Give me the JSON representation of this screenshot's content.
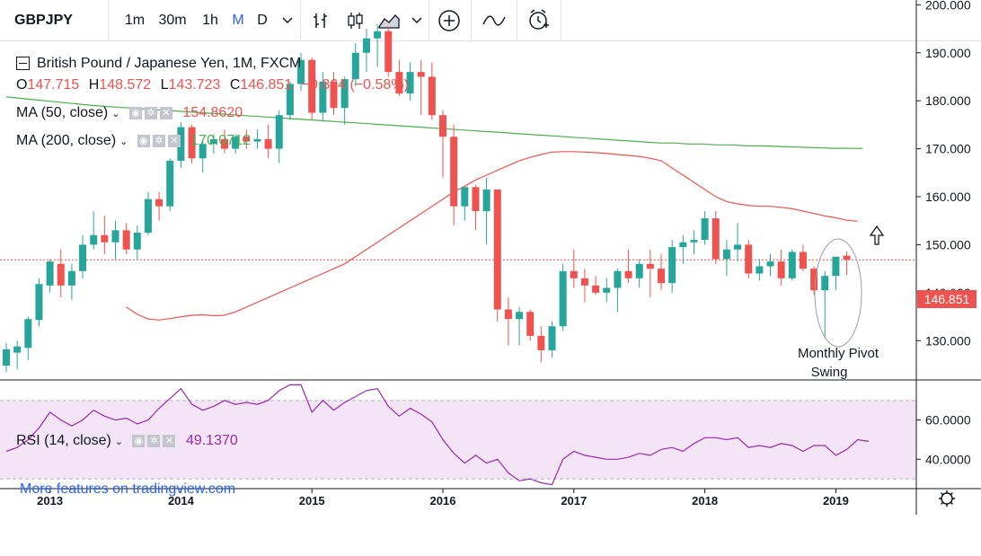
{
  "toolbar": {
    "symbol": "GBPJPY",
    "intervals": [
      "1m",
      "30m",
      "1h",
      "M",
      "D"
    ],
    "active_interval": "M",
    "icons": [
      "bar-style-icon",
      "candle-style-icon",
      "indicators-icon",
      "compare-add-icon",
      "line-tool-icon",
      "alert-icon"
    ]
  },
  "legend": {
    "title": "British Pound / Japanese Yen, 1M, FXCM",
    "ohlc": {
      "o_label": "O",
      "o": "147.715",
      "h_label": "H",
      "h": "148.572",
      "l_label": "L",
      "l": "143.723",
      "c_label": "C",
      "c": "146.851",
      "change": "−0.864 (−0.58%)"
    },
    "ma50": {
      "label": "MA (50, close)",
      "value": "154.8620"
    },
    "ma200": {
      "label": "MA (200, close)",
      "value": "170.0712"
    },
    "rsi": {
      "label": "RSI (14, close)",
      "value": "49.1370"
    },
    "watermark": "More features on tradingview.com"
  },
  "annotation": {
    "line1": "Monthly Pivot",
    "line2": "Swing"
  },
  "price_badge": "146.851",
  "colors": {
    "up": "#26a69a",
    "down": "#ef5350",
    "ma50": "#ef5350",
    "ma200": "#4caf50",
    "rsi": "#9c27b0",
    "rsi_band": "#f3e5f5",
    "accent": "#2962ff"
  },
  "chart_data": {
    "type": "candlestick",
    "y_ticks": [
      "200.000",
      "190.000",
      "180.000",
      "170.000",
      "160.000",
      "150.000",
      "140.000",
      "130.000"
    ],
    "y_tick_values": [
      200,
      190,
      180,
      170,
      160,
      150,
      140,
      130
    ],
    "ylim": [
      122,
      201
    ],
    "x_ticks": [
      "2013",
      "2014",
      "2015",
      "2016",
      "2017",
      "2018",
      "2019"
    ],
    "x_tick_index": [
      4,
      16,
      28,
      40,
      52,
      64,
      76
    ],
    "rsi_ticks": [
      "60.0000",
      "40.0000"
    ],
    "rsi_tick_values": [
      60,
      40
    ],
    "rsi_ylim": [
      25,
      80
    ],
    "rsi_bands": [
      70,
      30
    ],
    "last_price": 146.851,
    "candles": [
      {
        "o": 124.8,
        "h": 129.5,
        "l": 123.5,
        "c": 128.2
      },
      {
        "o": 127.5,
        "h": 130.0,
        "l": 124.0,
        "c": 128.8
      },
      {
        "o": 128.5,
        "h": 135.0,
        "l": 126.0,
        "c": 134.5
      },
      {
        "o": 134.3,
        "h": 143.0,
        "l": 133.0,
        "c": 141.8
      },
      {
        "o": 141.5,
        "h": 147.0,
        "l": 140.0,
        "c": 146.5
      },
      {
        "o": 146.0,
        "h": 149.0,
        "l": 139.0,
        "c": 141.5
      },
      {
        "o": 141.5,
        "h": 146.0,
        "l": 138.5,
        "c": 144.5
      },
      {
        "o": 144.5,
        "h": 152.0,
        "l": 143.0,
        "c": 150.0
      },
      {
        "o": 150.0,
        "h": 157.0,
        "l": 149.0,
        "c": 152.0
      },
      {
        "o": 152.0,
        "h": 156.0,
        "l": 148.0,
        "c": 150.5
      },
      {
        "o": 150.5,
        "h": 155.0,
        "l": 147.0,
        "c": 153.0
      },
      {
        "o": 153.0,
        "h": 154.5,
        "l": 148.0,
        "c": 149.0
      },
      {
        "o": 149.0,
        "h": 154.0,
        "l": 147.0,
        "c": 152.5
      },
      {
        "o": 152.5,
        "h": 161.0,
        "l": 152.0,
        "c": 159.5
      },
      {
        "o": 159.5,
        "h": 161.0,
        "l": 155.0,
        "c": 158.0
      },
      {
        "o": 158.0,
        "h": 168.0,
        "l": 157.0,
        "c": 167.5
      },
      {
        "o": 167.5,
        "h": 175.5,
        "l": 166.0,
        "c": 174.5
      },
      {
        "o": 174.5,
        "h": 175.0,
        "l": 167.0,
        "c": 168.0
      },
      {
        "o": 168.0,
        "h": 172.0,
        "l": 165.0,
        "c": 171.0
      },
      {
        "o": 171.0,
        "h": 173.0,
        "l": 169.0,
        "c": 172.0
      },
      {
        "o": 172.0,
        "h": 174.0,
        "l": 169.0,
        "c": 170.0
      },
      {
        "o": 170.0,
        "h": 173.0,
        "l": 169.0,
        "c": 172.5
      },
      {
        "o": 172.5,
        "h": 174.0,
        "l": 170.0,
        "c": 171.5
      },
      {
        "o": 171.5,
        "h": 174.0,
        "l": 170.0,
        "c": 172.0
      },
      {
        "o": 172.0,
        "h": 175.0,
        "l": 168.0,
        "c": 170.0
      },
      {
        "o": 170.0,
        "h": 178.0,
        "l": 167.0,
        "c": 177.0
      },
      {
        "o": 177.0,
        "h": 184.0,
        "l": 176.0,
        "c": 183.5
      },
      {
        "o": 183.5,
        "h": 190.0,
        "l": 182.0,
        "c": 188.5
      },
      {
        "o": 188.5,
        "h": 189.0,
        "l": 176.0,
        "c": 177.5
      },
      {
        "o": 177.5,
        "h": 186.0,
        "l": 176.0,
        "c": 184.0
      },
      {
        "o": 184.0,
        "h": 186.0,
        "l": 177.0,
        "c": 178.5
      },
      {
        "o": 178.5,
        "h": 185.0,
        "l": 175.0,
        "c": 184.5
      },
      {
        "o": 184.5,
        "h": 192.0,
        "l": 183.0,
        "c": 190.0
      },
      {
        "o": 190.0,
        "h": 195.0,
        "l": 186.0,
        "c": 193.0
      },
      {
        "o": 193.0,
        "h": 196.0,
        "l": 187.0,
        "c": 194.5
      },
      {
        "o": 194.5,
        "h": 195.5,
        "l": 185.0,
        "c": 186.0
      },
      {
        "o": 186.0,
        "h": 188.5,
        "l": 181.0,
        "c": 181.5
      },
      {
        "o": 181.5,
        "h": 188.0,
        "l": 180.0,
        "c": 186.0
      },
      {
        "o": 186.0,
        "h": 188.5,
        "l": 177.0,
        "c": 185.0
      },
      {
        "o": 185.0,
        "h": 188.0,
        "l": 176.0,
        "c": 177.0
      },
      {
        "o": 177.0,
        "h": 178.0,
        "l": 164.0,
        "c": 172.5
      },
      {
        "o": 172.5,
        "h": 175.0,
        "l": 154.0,
        "c": 158.0
      },
      {
        "o": 158.0,
        "h": 162.0,
        "l": 155.0,
        "c": 162.0
      },
      {
        "o": 162.0,
        "h": 162.5,
        "l": 153.0,
        "c": 157.0
      },
      {
        "o": 157.0,
        "h": 164.0,
        "l": 150.0,
        "c": 161.5
      },
      {
        "o": 161.5,
        "h": 161.5,
        "l": 134.0,
        "c": 136.5
      },
      {
        "o": 136.5,
        "h": 139.0,
        "l": 129.0,
        "c": 134.5
      },
      {
        "o": 134.5,
        "h": 137.0,
        "l": 129.0,
        "c": 136.0
      },
      {
        "o": 136.0,
        "h": 136.5,
        "l": 130.0,
        "c": 131.0
      },
      {
        "o": 131.0,
        "h": 133.0,
        "l": 125.5,
        "c": 128.0
      },
      {
        "o": 128.0,
        "h": 134.0,
        "l": 126.5,
        "c": 133.0
      },
      {
        "o": 133.0,
        "h": 146.0,
        "l": 132.0,
        "c": 144.5
      },
      {
        "o": 144.5,
        "h": 149.0,
        "l": 141.0,
        "c": 143.0
      },
      {
        "o": 143.0,
        "h": 145.0,
        "l": 138.0,
        "c": 141.5
      },
      {
        "o": 141.5,
        "h": 143.5,
        "l": 139.5,
        "c": 140.0
      },
      {
        "o": 140.0,
        "h": 143.0,
        "l": 138.0,
        "c": 141.0
      },
      {
        "o": 141.0,
        "h": 145.0,
        "l": 136.0,
        "c": 144.5
      },
      {
        "o": 144.5,
        "h": 149.0,
        "l": 142.0,
        "c": 143.0
      },
      {
        "o": 143.0,
        "h": 147.0,
        "l": 141.0,
        "c": 146.0
      },
      {
        "o": 146.0,
        "h": 149.0,
        "l": 139.0,
        "c": 145.0
      },
      {
        "o": 145.0,
        "h": 148.0,
        "l": 140.5,
        "c": 142.0
      },
      {
        "o": 142.0,
        "h": 151.0,
        "l": 140.0,
        "c": 149.5
      },
      {
        "o": 149.5,
        "h": 152.0,
        "l": 146.0,
        "c": 150.5
      },
      {
        "o": 150.5,
        "h": 153.0,
        "l": 148.0,
        "c": 151.0
      },
      {
        "o": 151.0,
        "h": 157.0,
        "l": 150.0,
        "c": 155.5
      },
      {
        "o": 155.5,
        "h": 157.0,
        "l": 146.0,
        "c": 147.0
      },
      {
        "o": 147.0,
        "h": 151.0,
        "l": 143.5,
        "c": 149.0
      },
      {
        "o": 149.0,
        "h": 154.5,
        "l": 146.5,
        "c": 150.0
      },
      {
        "o": 150.0,
        "h": 151.0,
        "l": 143.0,
        "c": 144.0
      },
      {
        "o": 144.0,
        "h": 147.0,
        "l": 142.5,
        "c": 145.5
      },
      {
        "o": 145.5,
        "h": 148.0,
        "l": 143.5,
        "c": 146.5
      },
      {
        "o": 146.5,
        "h": 149.0,
        "l": 141.5,
        "c": 143.0
      },
      {
        "o": 143.0,
        "h": 149.0,
        "l": 142.5,
        "c": 148.5
      },
      {
        "o": 148.5,
        "h": 150.0,
        "l": 144.5,
        "c": 145.0
      },
      {
        "o": 145.0,
        "h": 145.5,
        "l": 139.5,
        "c": 140.5
      },
      {
        "o": 140.5,
        "h": 144.5,
        "l": 130.5,
        "c": 143.5
      },
      {
        "o": 143.5,
        "h": 147.0,
        "l": 140.5,
        "c": 147.5
      },
      {
        "o": 147.7,
        "h": 148.6,
        "l": 143.7,
        "c": 146.9
      }
    ],
    "ma50": [
      137,
      135.5,
      134.5,
      134.3,
      134.6,
      135,
      135.3,
      135.4,
      135.2,
      135.3,
      136,
      137,
      138,
      139,
      140,
      141,
      142,
      143,
      144,
      145,
      146,
      147.5,
      149,
      150.5,
      152,
      153.5,
      155,
      156.5,
      158,
      159.5,
      161,
      162.2,
      163.5,
      164.5,
      165.5,
      166.5,
      167.5,
      168.2,
      168.8,
      169.3,
      169.4,
      169.4,
      169.3,
      169.2,
      169,
      168.8,
      168.6,
      168.4,
      168,
      167.5,
      166,
      164.5,
      163,
      161.5,
      160,
      159,
      158.5,
      158.2,
      158,
      158,
      157.8,
      157.5,
      157,
      156.5,
      156,
      155.6,
      155.1,
      154.9
    ],
    "ma50_start": 11,
    "ma200": [
      180.8,
      180.5,
      180.2,
      179.9,
      179.6,
      179.3,
      179,
      178.8,
      178.6,
      178.4,
      178.2,
      178,
      177.8,
      177.6,
      177.4,
      177.2,
      177,
      176.8,
      176.6,
      176.4,
      176.2,
      176,
      175.8,
      175.6,
      175.4,
      175.2,
      175,
      174.8,
      174.6,
      174.4,
      174.2,
      174,
      173.8,
      173.6,
      173.4,
      173.2,
      173,
      172.8,
      172.6,
      172.4,
      172.2,
      172,
      171.8,
      171.6,
      171.4,
      171.2,
      171.2,
      171,
      171,
      170.8,
      170.8,
      170.6,
      170.6,
      170.5,
      170.4,
      170.3,
      170.2,
      170.1,
      170.1,
      170.07
    ],
    "ma200_start": 0,
    "ma200_step": 1.33,
    "rsi": [
      44,
      46,
      50,
      56,
      64,
      60,
      57,
      60,
      65,
      62,
      60,
      61,
      58,
      60,
      66,
      71,
      76,
      68,
      65,
      67,
      70,
      68,
      69,
      68,
      70,
      75,
      78,
      78,
      64,
      70,
      65,
      69,
      72,
      75,
      76,
      67,
      62,
      66,
      63,
      59,
      50,
      43,
      38,
      42,
      38,
      40,
      33,
      29,
      30,
      28,
      27,
      40,
      44,
      42,
      41,
      40,
      40,
      41,
      43,
      42,
      45,
      46,
      44,
      48,
      51,
      51,
      50,
      51,
      46,
      47,
      46,
      48,
      47,
      44,
      47,
      47,
      42,
      45,
      50,
      49.1
    ]
  }
}
